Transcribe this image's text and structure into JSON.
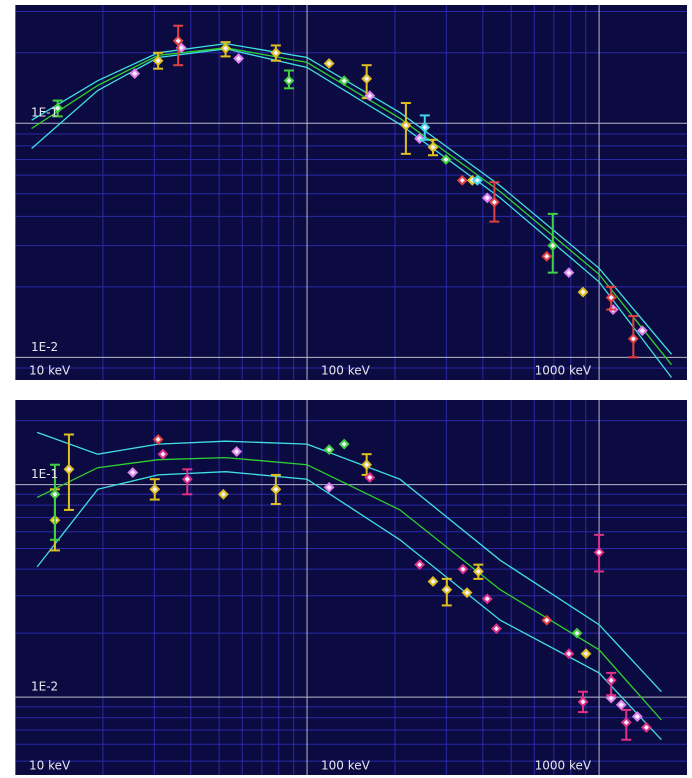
{
  "chart_data": [
    {
      "type": "scatter",
      "log_x": true,
      "log_y": true,
      "grid": true,
      "xlim": [
        10,
        2000
      ],
      "ylim": [
        0.008,
        0.32
      ],
      "xticks": [
        {
          "value": 10,
          "label": "10 keV"
        },
        {
          "value": 100,
          "label": "100 keV"
        },
        {
          "value": 1000,
          "label": "1000 keV"
        }
      ],
      "yticks": [
        {
          "value": 0.1,
          "label": "1E-1"
        },
        {
          "value": 0.01,
          "label": "1E-2"
        }
      ],
      "series": [
        {
          "color": "#e0c020",
          "x": [
            30.9,
            52.6,
            78.2,
            119,
            160,
            218,
            270,
            368,
            881
          ],
          "values": [
            0.185,
            0.209,
            0.2,
            0.18,
            0.155,
            0.098,
            0.079,
            0.057,
            0.019
          ],
          "ylow": [
            0.171,
            0.193,
            0.185,
            null,
            0.128,
            0.074,
            0.073,
            null,
            null
          ],
          "yhigh": [
            0.2,
            0.222,
            0.215,
            null,
            0.177,
            0.122,
            0.085,
            null,
            null
          ]
        },
        {
          "color": "#40d040",
          "x": [
            14.0,
            86.7,
            134,
            299,
            694
          ],
          "values": [
            0.116,
            0.152,
            0.152,
            0.07,
            0.03
          ],
          "ylow": [
            0.107,
            0.141,
            null,
            null,
            0.023
          ],
          "yhigh": [
            0.125,
            0.168,
            null,
            null,
            0.041
          ]
        },
        {
          "color": "#e080f0",
          "x": [
            25.7,
            37.1,
            58.3,
            164,
            243,
            414,
            788,
            1117,
            1406
          ],
          "values": [
            0.163,
            0.21,
            0.189,
            0.131,
            0.086,
            0.048,
            0.023,
            0.016,
            0.013
          ],
          "ylow": [
            null,
            null,
            null,
            null,
            null,
            null,
            null,
            null,
            null
          ],
          "yhigh": [
            null,
            null,
            null,
            null,
            null,
            null,
            null,
            null,
            null
          ]
        },
        {
          "color": "#e04040",
          "x": [
            36.2,
            340,
            438,
            662,
            1100,
            1310
          ],
          "values": [
            0.225,
            0.057,
            0.046,
            0.027,
            0.018,
            0.012
          ],
          "ylow": [
            0.177,
            null,
            0.038,
            null,
            0.016,
            0.01
          ],
          "yhigh": [
            0.261,
            null,
            0.056,
            null,
            0.02,
            0.015
          ]
        },
        {
          "color": "#40d8e8",
          "x": [
            253,
            383
          ],
          "values": [
            0.096,
            0.057
          ],
          "ylow": [
            0.085,
            null
          ],
          "yhigh": [
            0.108,
            null
          ]
        }
      ],
      "models": [
        {
          "color": "#40e0e0",
          "x": [
            11.4,
            19.2,
            30.9,
            52.6,
            100,
            208,
            459,
            1000,
            1770
          ],
          "values": [
            0.103,
            0.152,
            0.2,
            0.219,
            0.191,
            0.111,
            0.054,
            0.024,
            0.0103
          ]
        },
        {
          "color": "#40e0e0",
          "x": [
            11.4,
            19.2,
            30.9,
            52.6,
            100,
            208,
            459,
            1000,
            1770
          ],
          "values": [
            0.078,
            0.138,
            0.191,
            0.208,
            0.173,
            0.099,
            0.048,
            0.021,
            0.0082
          ]
        },
        {
          "color": "#30d030",
          "x": [
            11.4,
            19.2,
            30.9,
            52.6,
            100,
            208,
            459,
            1000,
            1770
          ],
          "values": [
            0.095,
            0.145,
            0.195,
            0.21,
            0.182,
            0.105,
            0.051,
            0.0226,
            0.0093
          ]
        }
      ]
    },
    {
      "type": "scatter",
      "log_x": true,
      "log_y": true,
      "grid": true,
      "xlim": [
        10,
        2000
      ],
      "ylim": [
        0.0043,
        0.25
      ],
      "xticks": [
        {
          "value": 10,
          "label": "10 keV"
        },
        {
          "value": 100,
          "label": "100 keV"
        },
        {
          "value": 1000,
          "label": "1000 keV"
        }
      ],
      "yticks": [
        {
          "value": 0.1,
          "label": "1E-1"
        },
        {
          "value": 0.01,
          "label": "1E-2"
        }
      ],
      "series": [
        {
          "color": "#e0c020",
          "x": [
            13.7,
            15.3,
            30.1,
            51.7,
            78.2,
            160,
            270,
            301,
            353,
            386,
            902
          ],
          "values": [
            0.068,
            0.118,
            0.095,
            0.09,
            0.095,
            0.124,
            0.035,
            0.032,
            0.031,
            0.039,
            0.016
          ],
          "ylow": [
            0.049,
            0.076,
            0.085,
            null,
            0.081,
            0.111,
            null,
            0.027,
            null,
            0.036,
            null
          ],
          "yhigh": [
            0.095,
            0.172,
            0.106,
            null,
            0.111,
            0.139,
            null,
            0.036,
            null,
            0.042,
            null
          ]
        },
        {
          "color": "#40d040",
          "x": [
            13.7,
            119,
            134,
            840
          ],
          "values": [
            0.09,
            0.146,
            0.155,
            0.02
          ],
          "ylow": [
            0.055,
            null,
            null,
            null
          ],
          "yhigh": [
            0.124,
            null,
            null,
            null
          ]
        },
        {
          "color": "#e080f0",
          "x": [
            25.3,
            57.4,
            119,
            1100,
            1191,
            1352
          ],
          "values": [
            0.114,
            0.143,
            0.097,
            0.0099,
            0.0092,
            0.0081
          ],
          "ylow": [
            null,
            null,
            null,
            null,
            null,
            null
          ],
          "yhigh": [
            null,
            null,
            null,
            null,
            null,
            null
          ]
        },
        {
          "color": "#e04040",
          "x": [
            30.9,
            662
          ],
          "values": [
            0.163,
            0.023
          ],
          "ylow": [
            null,
            null
          ],
          "yhigh": [
            null,
            null
          ]
        },
        {
          "color": "#e03088",
          "x": [
            32.1,
            38.9,
            164,
            243,
            342,
            414,
            445,
            788,
            881,
            1000,
            1100,
            1239,
            1452
          ],
          "values": [
            0.139,
            0.106,
            0.108,
            0.042,
            0.04,
            0.029,
            0.021,
            0.016,
            0.0095,
            0.048,
            0.012,
            0.0076,
            0.0072
          ],
          "ylow": [
            null,
            0.09,
            null,
            null,
            null,
            null,
            null,
            null,
            0.0085,
            0.039,
            0.0102,
            0.0063,
            null
          ],
          "yhigh": [
            null,
            0.118,
            null,
            null,
            null,
            null,
            null,
            null,
            0.0106,
            0.058,
            0.013,
            0.0087,
            null
          ]
        }
      ],
      "models": [
        {
          "color": "#40e0e0",
          "x": [
            11.9,
            19.2,
            30.9,
            52.6,
            100,
            208,
            459,
            1000,
            1634
          ],
          "values": [
            0.176,
            0.139,
            0.155,
            0.16,
            0.155,
            0.106,
            0.044,
            0.0219,
            0.0106
          ]
        },
        {
          "color": "#40e0e0",
          "x": [
            11.9,
            19.2,
            30.9,
            52.6,
            100,
            208,
            459,
            1000,
            1634
          ],
          "values": [
            0.041,
            0.095,
            0.111,
            0.115,
            0.106,
            0.055,
            0.023,
            0.013,
            0.0063
          ]
        },
        {
          "color": "#30d030",
          "x": [
            11.9,
            19.2,
            30.9,
            52.6,
            100,
            208,
            459,
            1000,
            1634
          ],
          "values": [
            0.087,
            0.12,
            0.131,
            0.134,
            0.124,
            0.076,
            0.032,
            0.0167,
            0.0078
          ]
        }
      ]
    }
  ]
}
